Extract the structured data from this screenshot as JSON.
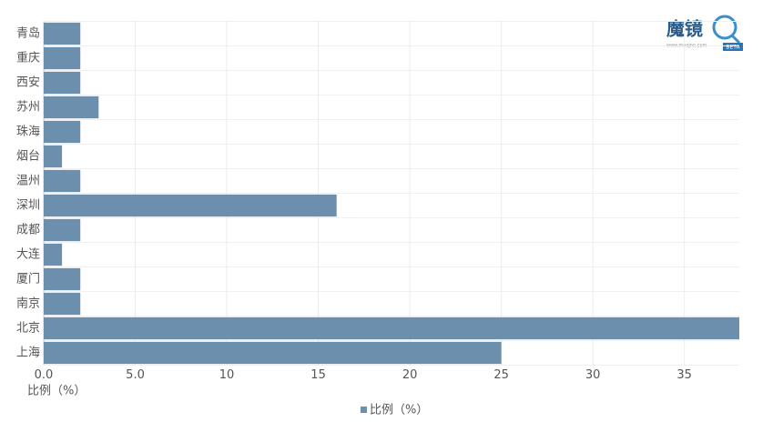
{
  "chart_data": {
    "type": "hbar",
    "categories": [
      "青岛",
      "重庆",
      "西安",
      "苏州",
      "珠海",
      "烟台",
      "温州",
      "深圳",
      "成都",
      "大连",
      "厦门",
      "南京",
      "北京",
      "上海"
    ],
    "series": [
      {
        "name": "比例（%）",
        "color": "#6b8fac",
        "values": [
          2,
          2,
          2,
          3,
          2,
          1,
          2,
          16,
          2,
          1,
          2,
          2,
          38,
          25
        ]
      }
    ],
    "x_label": "比例（%）",
    "xlim": [
      0,
      38
    ],
    "xticks": [
      {
        "value": 0,
        "label": "0.0"
      },
      {
        "value": 5,
        "label": "5.0"
      },
      10,
      15,
      20,
      25,
      30,
      35
    ],
    "grid": true,
    "legend": "bottom"
  },
  "logo": {
    "name": "魔镜",
    "badge": "BETA",
    "url": "www.moojnn.com"
  }
}
